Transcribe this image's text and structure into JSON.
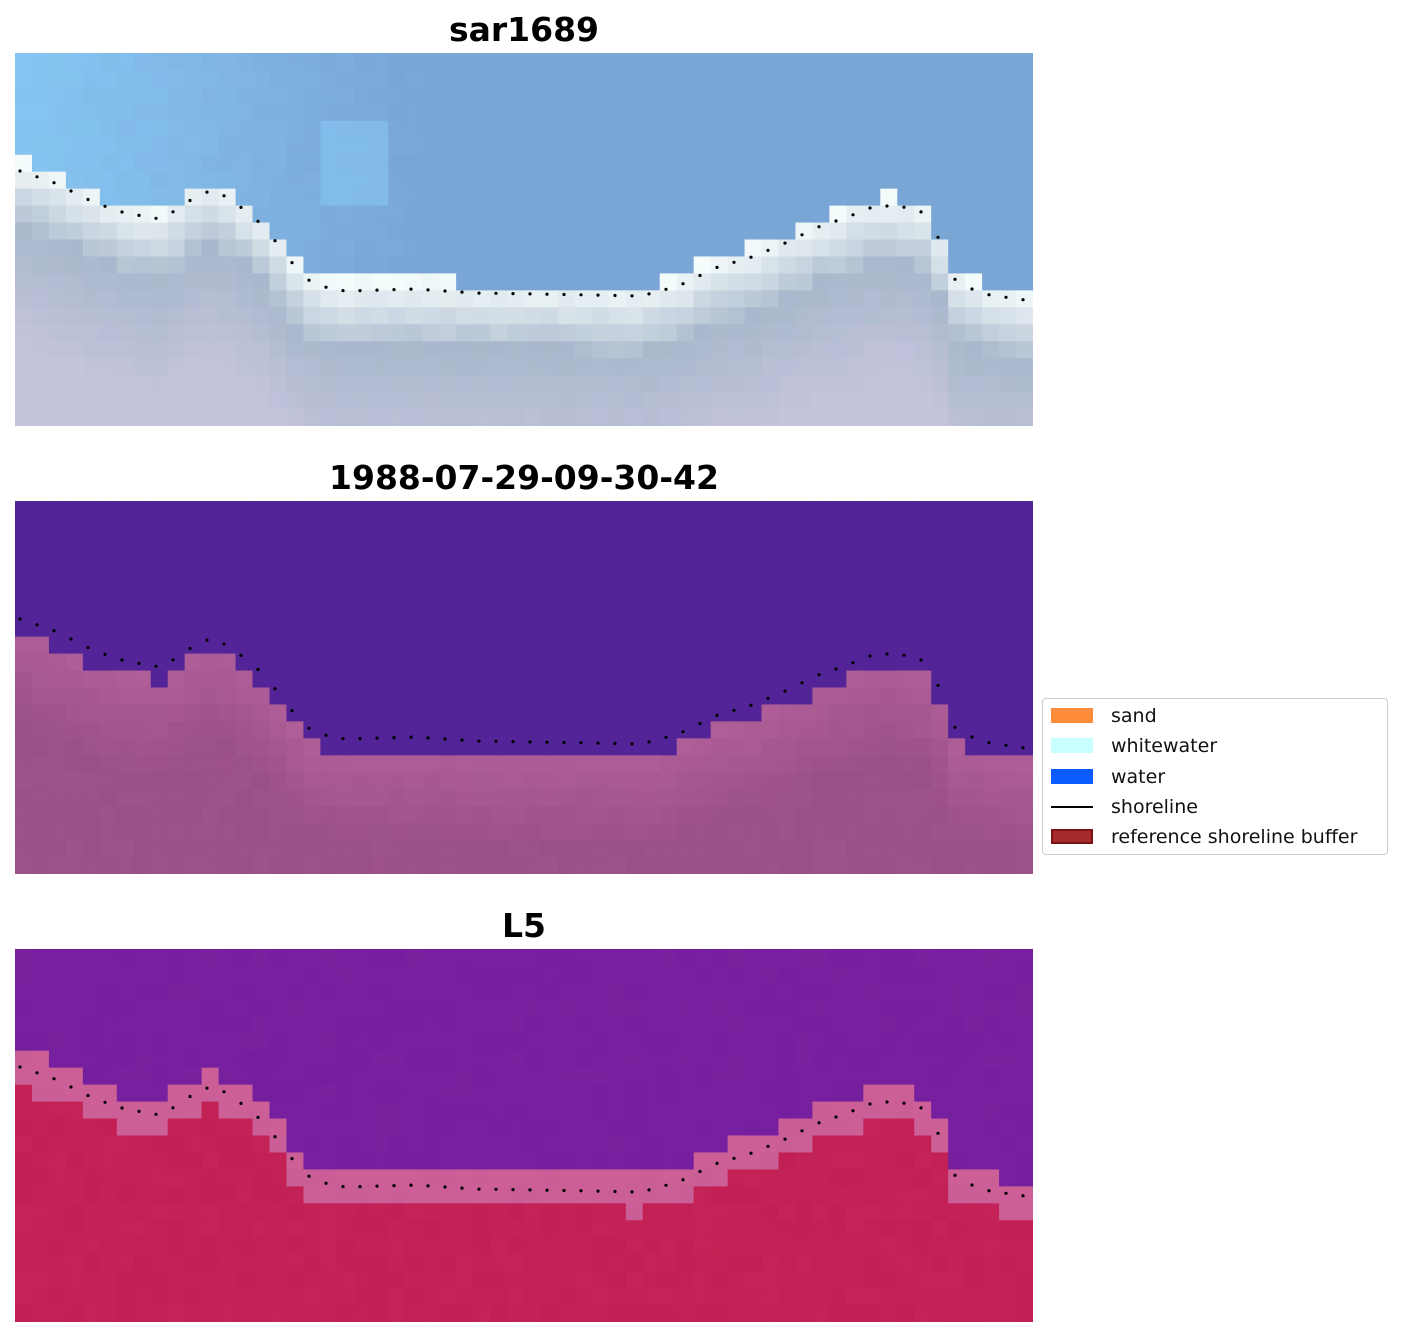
{
  "panels": [
    {
      "title": "sar1689",
      "kind": "rgb"
    },
    {
      "title": "1988-07-29-09-30-42",
      "kind": "classification"
    },
    {
      "title": "L5",
      "kind": "index"
    }
  ],
  "legend": {
    "items": [
      {
        "label": "sand",
        "color": "#ff8c3a",
        "kind": "patch"
      },
      {
        "label": "whitewater",
        "color": "#c8ffff",
        "kind": "patch"
      },
      {
        "label": "water",
        "color": "#0a5cff",
        "kind": "patch"
      },
      {
        "label": "shoreline",
        "color": "#000000",
        "kind": "line"
      },
      {
        "label": "reference shoreline buffer",
        "color": "#a52a2a",
        "kind": "patch",
        "edge": "#7a1414"
      }
    ]
  },
  "colors": {
    "sky_light": "#86c6f2",
    "sky_mid": "#7aa6d6",
    "whitewater": "#f4fbfb",
    "sand_rgb": "#a9b8cc",
    "class_water": "#532497",
    "class_buffer": "#b05e98",
    "index_water": "#6e1a9e",
    "index_land": "#c01a50",
    "shoreline_dots": "#000000"
  }
}
